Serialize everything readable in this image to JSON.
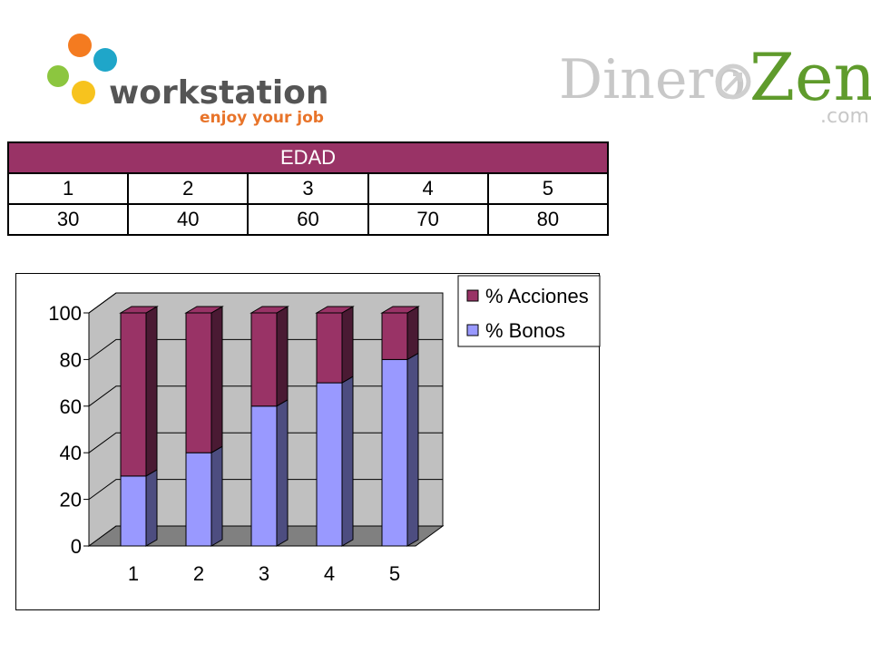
{
  "logos": {
    "workstation": {
      "name": "workstation",
      "tagline": "enjoy your job"
    },
    "dinerozen": {
      "part1": "Dinero",
      "part2": "Zen",
      "suffix": ".com"
    }
  },
  "table": {
    "header": "EDAD",
    "row1": [
      "1",
      "2",
      "3",
      "4",
      "5"
    ],
    "row2": [
      "30",
      "40",
      "60",
      "70",
      "80"
    ]
  },
  "colors": {
    "acciones": "#993366",
    "acciones_dark": "#4a1a33",
    "bonos": "#9999ff",
    "bonos_dark": "#4d4d80",
    "plot_bg": "#c0c0c0",
    "floor": "#808080"
  },
  "chart_data": {
    "type": "bar",
    "stacked": true,
    "three_d": true,
    "categories": [
      "1",
      "2",
      "3",
      "4",
      "5"
    ],
    "series": [
      {
        "name": "% Bonos",
        "values": [
          30,
          40,
          60,
          70,
          80
        ]
      },
      {
        "name": "% Acciones",
        "values": [
          70,
          60,
          40,
          30,
          20
        ]
      }
    ],
    "ylim": [
      0,
      100
    ],
    "yticks": [
      "0",
      "20",
      "40",
      "60",
      "80",
      "100"
    ],
    "legend": [
      "% Acciones",
      "% Bonos"
    ],
    "legend_position": "top-right",
    "grid": true
  }
}
